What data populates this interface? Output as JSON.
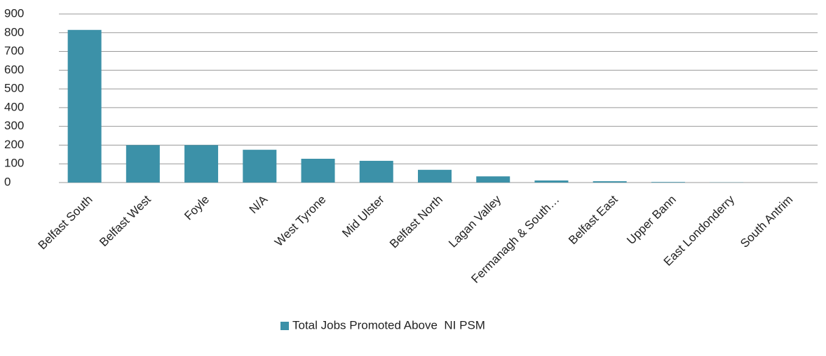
{
  "chart_data": {
    "type": "bar",
    "categories": [
      "Belfast South",
      "Belfast West",
      "Foyle",
      "N/A",
      "West Tyrone",
      "Mid Ulster",
      "Belfast North",
      "Lagan Valley",
      "Fermanagh & South…",
      "Belfast East",
      "Upper Bann",
      "East Londonderry",
      "South Antrim"
    ],
    "series": [
      {
        "name": "Total Jobs Promoted Above  NI PSM",
        "color": "#3c91a8",
        "values": [
          815,
          200,
          200,
          175,
          127,
          116,
          68,
          33,
          11,
          7,
          3,
          1,
          0
        ]
      }
    ],
    "ylim": [
      0,
      900
    ],
    "yticks": [
      0,
      100,
      200,
      300,
      400,
      500,
      600,
      700,
      800,
      900
    ],
    "grid": true,
    "legend": "bottom"
  }
}
